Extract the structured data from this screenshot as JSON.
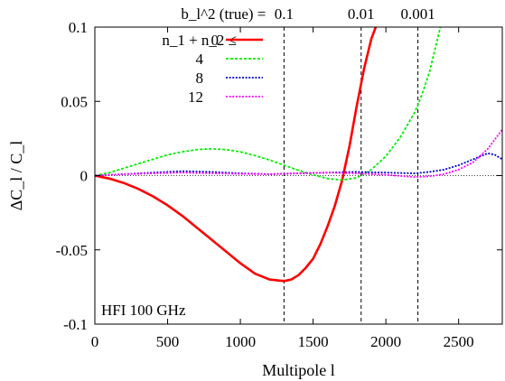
{
  "chart_data": {
    "type": "line",
    "title": "",
    "xlabel": "Multipole l",
    "ylabel": "ΔC_l / C_l",
    "xlim": [
      0,
      2800
    ],
    "ylim": [
      -0.1,
      0.1
    ],
    "xticks": [
      0,
      500,
      1000,
      1500,
      2000,
      2500
    ],
    "xtick_labels": [
      "0",
      "500",
      "1000",
      "1500",
      "2000",
      "2500"
    ],
    "yticks": [
      -0.1,
      -0.05,
      0,
      0.05,
      0.1
    ],
    "ytick_labels": [
      "-0.1",
      "-0.05",
      "0",
      "0.05",
      "0.1"
    ],
    "grid": false,
    "legend_position": "top-left",
    "legend_title": "n_1 + n_2 ≤",
    "annotation": "HFI 100 GHz",
    "top_axis": {
      "label": "b_l^2 (true)  =",
      "ticks": [
        {
          "x": 1300,
          "label": "0.1"
        },
        {
          "x": 1830,
          "label": "0.01"
        },
        {
          "x": 2220,
          "label": "0.001"
        }
      ]
    },
    "zero_line": true,
    "series": [
      {
        "name": "0",
        "color": "#ff0000",
        "style": "solid",
        "x": [
          0,
          100,
          200,
          300,
          400,
          500,
          600,
          700,
          800,
          900,
          1000,
          1100,
          1200,
          1300,
          1350,
          1400,
          1450,
          1500,
          1550,
          1600,
          1650,
          1700,
          1750,
          1800,
          1850,
          1900,
          1930
        ],
        "y": [
          0,
          -0.002,
          -0.005,
          -0.009,
          -0.014,
          -0.02,
          -0.027,
          -0.035,
          -0.043,
          -0.051,
          -0.059,
          -0.066,
          -0.07,
          -0.071,
          -0.07,
          -0.067,
          -0.062,
          -0.056,
          -0.046,
          -0.034,
          -0.02,
          -0.003,
          0.02,
          0.047,
          0.072,
          0.092,
          0.1
        ]
      },
      {
        "name": "4",
        "color": "#00ee00",
        "style": "dashed",
        "x": [
          0,
          100,
          200,
          300,
          400,
          500,
          600,
          700,
          800,
          900,
          1000,
          1100,
          1200,
          1300,
          1400,
          1500,
          1600,
          1700,
          1800,
          1900,
          2000,
          2100,
          2200,
          2250,
          2300,
          2350,
          2375
        ],
        "y": [
          0,
          0.002,
          0.005,
          0.008,
          0.011,
          0.014,
          0.016,
          0.0175,
          0.018,
          0.0175,
          0.016,
          0.0135,
          0.0105,
          0.007,
          0.0035,
          0.0005,
          -0.002,
          -0.003,
          -0.0015,
          0.004,
          0.013,
          0.026,
          0.043,
          0.055,
          0.07,
          0.09,
          0.1
        ]
      },
      {
        "name": "8",
        "color": "#0000cc",
        "style": "dotted",
        "x": [
          0,
          200,
          400,
          600,
          800,
          1000,
          1200,
          1400,
          1600,
          1800,
          2000,
          2200,
          2300,
          2400,
          2500,
          2600,
          2700,
          2750,
          2800
        ],
        "y": [
          0,
          0.001,
          0.002,
          0.003,
          0.0025,
          0.0015,
          0.001,
          0.0015,
          0.002,
          0.0025,
          0.002,
          0.0015,
          0.0025,
          0.004,
          0.007,
          0.011,
          0.015,
          0.014,
          0.011
        ]
      },
      {
        "name": "12",
        "color": "#ff00ff",
        "style": "dotted",
        "x": [
          0,
          200,
          400,
          600,
          800,
          1000,
          1200,
          1400,
          1600,
          1800,
          2000,
          2200,
          2300,
          2400,
          2500,
          2600,
          2700,
          2800
        ],
        "y": [
          0,
          0.001,
          0.0015,
          0.002,
          0.0015,
          0.0012,
          0.001,
          0.0015,
          0.002,
          0.0015,
          0.0005,
          -0.001,
          -0.0005,
          0.001,
          0.004,
          0.009,
          0.018,
          0.031
        ]
      }
    ]
  }
}
